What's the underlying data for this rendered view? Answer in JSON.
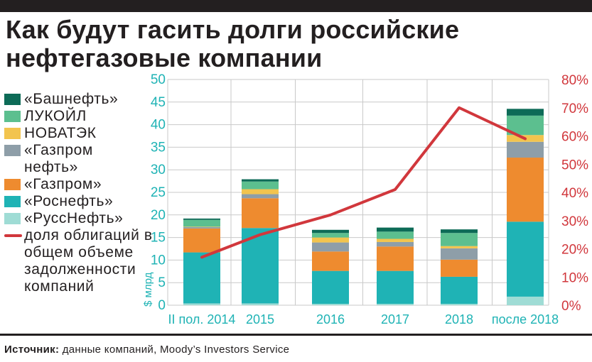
{
  "title": "Как будут гасить долги российские нефтегазовые компании",
  "source": {
    "label": "Источник:",
    "text": " данные компаний, Moody’s Investors Service"
  },
  "colors": {
    "bashneft": "#0d6b57",
    "lukoil": "#5cbf8f",
    "novatek": "#f2c44e",
    "gazpromneft": "#8e9ea8",
    "gazprom": "#ee8b2f",
    "rosneft": "#1fb3b5",
    "russneft": "#9fdcd5",
    "share_line": "#d1373c",
    "left_axis": "#1fb3b5",
    "right_axis": "#d1373c"
  },
  "legend": [
    {
      "key": "bashneft",
      "label": "«Башнефть»"
    },
    {
      "key": "lukoil",
      "label": "ЛУКОЙЛ"
    },
    {
      "key": "novatek",
      "label": "НОВАТЭК"
    },
    {
      "key": "gazpromneft",
      "label": "«Газпром нефть»"
    },
    {
      "key": "gazprom",
      "label": "«Газпром»"
    },
    {
      "key": "rosneft",
      "label": "«Роснефть»"
    },
    {
      "key": "russneft",
      "label": "«РуссНефть»"
    },
    {
      "key": "share",
      "label": "доля облигаций в общем объеме задолженности компаний"
    }
  ],
  "chart_data": {
    "type": "bar",
    "stacked": true,
    "categories": [
      "II пол. 2014",
      "2015",
      "2016",
      "2017",
      "2018",
      "после 2018"
    ],
    "ylabel": "$ млрд",
    "ylim": [
      0,
      50
    ],
    "yticks": [
      0,
      5,
      10,
      15,
      20,
      25,
      30,
      35,
      40,
      45,
      50
    ],
    "y2lim": [
      0,
      80
    ],
    "y2ticks": [
      "0%",
      "10%",
      "20%",
      "30%",
      "40%",
      "50%",
      "60%",
      "70%",
      "80%"
    ],
    "grid": true,
    "series": [
      {
        "key": "russneft",
        "name": "«РуссНефть»",
        "values": [
          0.4,
          0.4,
          0.3,
          0.3,
          0.3,
          1.9
        ]
      },
      {
        "key": "rosneft",
        "name": "«Роснефть»",
        "values": [
          11.3,
          16.7,
          7.3,
          7.3,
          6.0,
          16.6
        ]
      },
      {
        "key": "gazprom",
        "name": "«Газпром»",
        "values": [
          5.3,
          6.6,
          4.3,
          5.4,
          3.8,
          14.2
        ]
      },
      {
        "key": "gazpromneft",
        "name": "«Газпром нефть»",
        "values": [
          0.3,
          0.9,
          2.0,
          1.0,
          2.5,
          3.5
        ]
      },
      {
        "key": "novatek",
        "name": "НОВАТЭК",
        "values": [
          0.1,
          1.1,
          1.1,
          0.7,
          0.5,
          1.5
        ]
      },
      {
        "key": "lukoil",
        "name": "ЛУКОЙЛ",
        "values": [
          1.5,
          1.7,
          1.0,
          1.6,
          2.9,
          4.3
        ]
      },
      {
        "key": "bashneft",
        "name": "«Башнефть»",
        "values": [
          0.3,
          0.5,
          0.7,
          0.9,
          0.8,
          1.5
        ]
      }
    ],
    "line": {
      "name": "доля облигаций в общем объеме задолженности компаний",
      "axis": "right",
      "values": [
        17,
        25,
        32,
        41,
        70,
        59
      ]
    }
  }
}
